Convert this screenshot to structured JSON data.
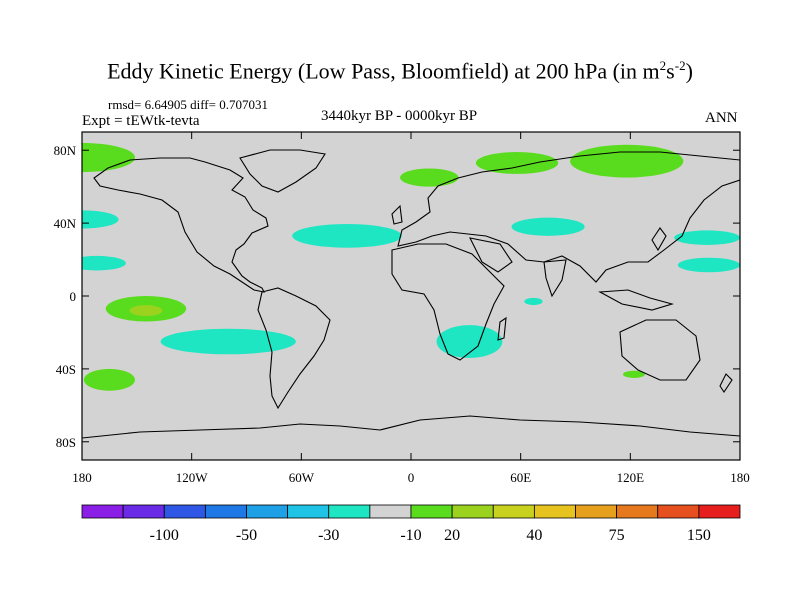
{
  "header": {
    "title_main": "Eddy Kinetic Energy (Low Pass, Bloomfield) at 200 hPa (in m",
    "title_sup1": "2",
    "title_s": "s",
    "title_sup2": "-2",
    "title_close": ")",
    "stats": "rmsd= 6.64905 diff= 0.707031",
    "expt": "Expt = tEWtk-tevta",
    "period": "3440kyr BP - 0000kyr BP",
    "season": "ANN"
  },
  "chart_data": {
    "type": "heatmap",
    "map": "global-cylindrical-equidistant",
    "xlim": [
      -180,
      180
    ],
    "ylim": [
      -90,
      90
    ],
    "x_ticks": [
      {
        "value": -180,
        "label": "180"
      },
      {
        "value": -120,
        "label": "120W"
      },
      {
        "value": -60,
        "label": "60W"
      },
      {
        "value": 0,
        "label": "0"
      },
      {
        "value": 60,
        "label": "60E"
      },
      {
        "value": 120,
        "label": "120E"
      },
      {
        "value": 180,
        "label": "180"
      }
    ],
    "y_ticks": [
      {
        "value": 80,
        "label": "80N"
      },
      {
        "value": 40,
        "label": "40N"
      },
      {
        "value": 0,
        "label": "0"
      },
      {
        "value": -40,
        "label": "40S"
      },
      {
        "value": -80,
        "label": "80S"
      }
    ],
    "background_color": "#d3d3d3",
    "colorbar": {
      "colors": [
        "#8a1ee6",
        "#6a2ae6",
        "#2f57e6",
        "#1e78e6",
        "#1ea0e6",
        "#1ec3e6",
        "#1ee6c3",
        "#d3d3d3",
        "#5adc1e",
        "#9bd21e",
        "#c8d21e",
        "#e6c31e",
        "#e6a01e",
        "#e6781e",
        "#e6501e",
        "#e61e1e"
      ],
      "labels": [
        {
          "after_index": 1,
          "text": "-100"
        },
        {
          "after_index": 3,
          "text": "-50"
        },
        {
          "after_index": 5,
          "text": "-30"
        },
        {
          "after_index": 7,
          "text": "-10"
        },
        {
          "after_index": 8,
          "text": "20"
        },
        {
          "after_index": 10,
          "text": "40"
        },
        {
          "after_index": 12,
          "text": "75"
        },
        {
          "after_index": 14,
          "text": "150"
        }
      ]
    },
    "regions": [
      {
        "name": "arctic-west-green",
        "color": "#5adc1e",
        "lon": -180,
        "lat": 76,
        "w": 58,
        "h": 16
      },
      {
        "name": "arctic-east-green",
        "color": "#5adc1e",
        "lon": 118,
        "lat": 74,
        "w": 62,
        "h": 18
      },
      {
        "name": "siberia-green",
        "color": "#5adc1e",
        "lon": 58,
        "lat": 73,
        "w": 45,
        "h": 12
      },
      {
        "name": "scandinavia-green",
        "color": "#5adc1e",
        "lon": 10,
        "lat": 65,
        "w": 32,
        "h": 10
      },
      {
        "name": "north-pacific-cyan",
        "color": "#1ee6c3",
        "lon": -180,
        "lat": 42,
        "w": 40,
        "h": 10
      },
      {
        "name": "north-atlantic-cyan",
        "color": "#1ee6c3",
        "lon": -35,
        "lat": 33,
        "w": 60,
        "h": 13
      },
      {
        "name": "central-asia-cyan",
        "color": "#1ee6c3",
        "lon": 75,
        "lat": 38,
        "w": 40,
        "h": 10
      },
      {
        "name": "nw-pacific-cyan",
        "color": "#1ee6c3",
        "lon": 162,
        "lat": 32,
        "w": 36,
        "h": 8
      },
      {
        "name": "ne-pacific-cyan",
        "color": "#1ee6c3",
        "lon": -172,
        "lat": 18,
        "w": 32,
        "h": 8
      },
      {
        "name": "japan-cyan",
        "color": "#1ee6c3",
        "lon": 163,
        "lat": 17,
        "w": 34,
        "h": 8
      },
      {
        "name": "tropical-pacific-green",
        "color": "#5adc1e",
        "lon": -145,
        "lat": -7,
        "w": 44,
        "h": 14
      },
      {
        "name": "tropical-pacific-core",
        "color": "#9bd21e",
        "lon": -145,
        "lat": -8,
        "w": 18,
        "h": 6
      },
      {
        "name": "south-pacific-cyan",
        "color": "#1ee6c3",
        "lon": -100,
        "lat": -25,
        "w": 74,
        "h": 14
      },
      {
        "name": "south-africa-cyan",
        "color": "#1ee6c3",
        "lon": 32,
        "lat": -25,
        "w": 36,
        "h": 18
      },
      {
        "name": "south-atlantic-green",
        "color": "#5adc1e",
        "lon": -165,
        "lat": -46,
        "w": 28,
        "h": 12
      },
      {
        "name": "indian-ocean-green",
        "color": "#5adc1e",
        "lon": 122,
        "lat": -43,
        "w": 12,
        "h": 4
      },
      {
        "name": "indian-cyan",
        "color": "#1ee6c3",
        "lon": 67,
        "lat": -3,
        "w": 10,
        "h": 4
      }
    ]
  }
}
